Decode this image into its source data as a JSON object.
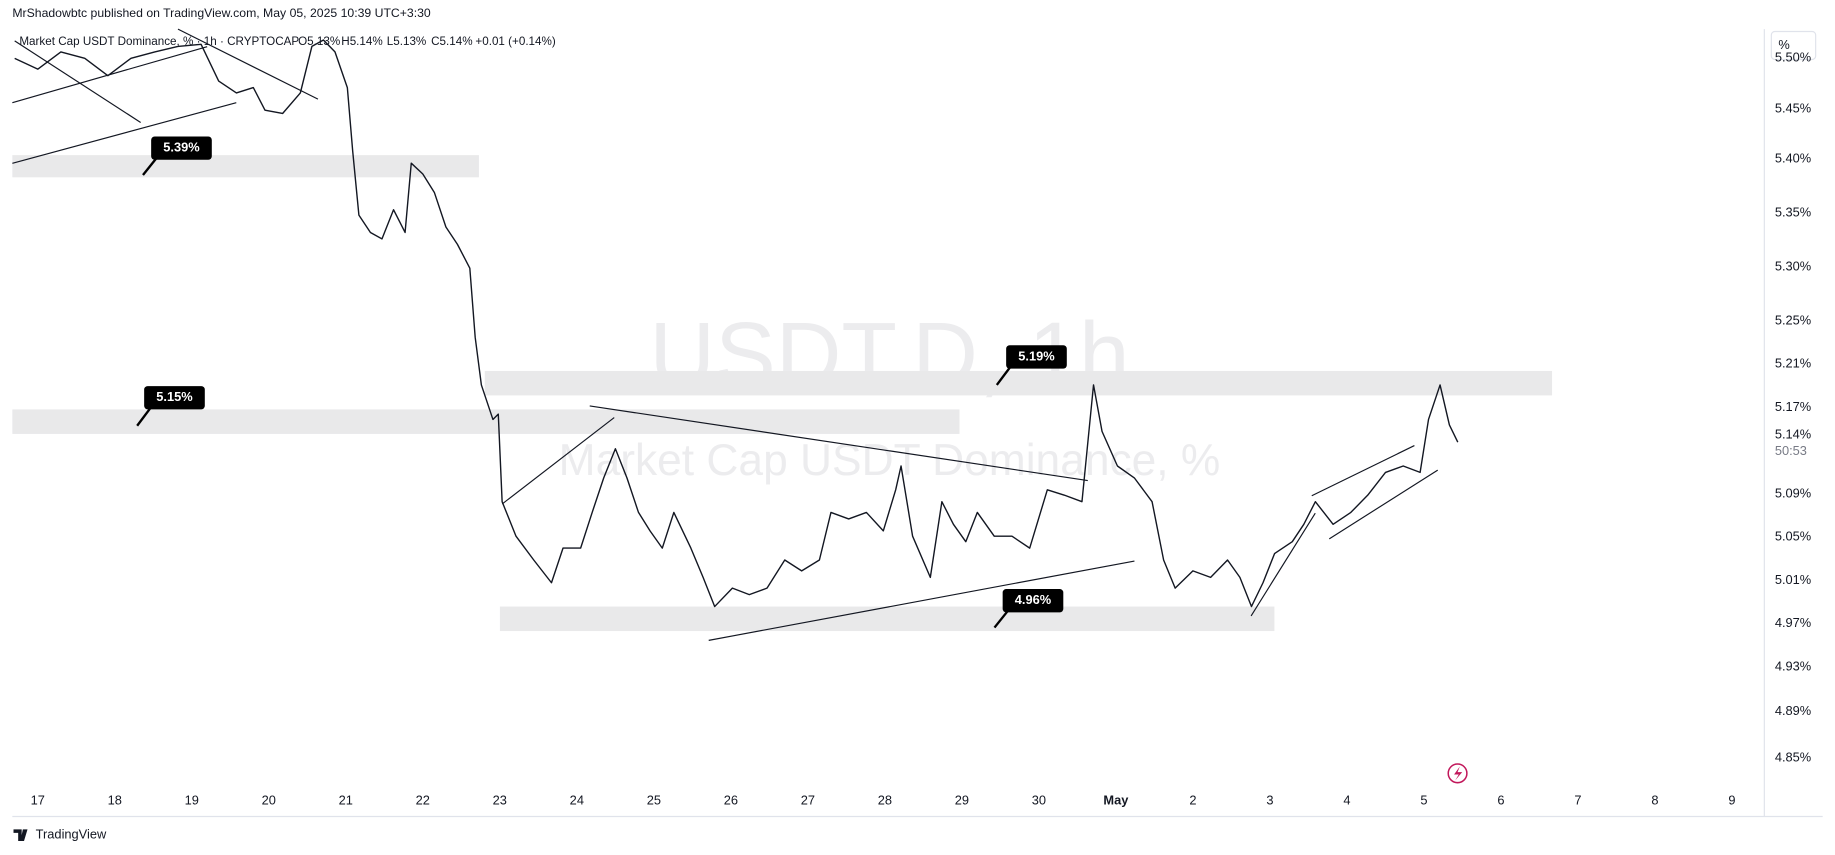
{
  "header": "MrShadowbtc published on TradingView.com, May 05, 2025 10:39 UTC+3:30",
  "footer": "TradingView",
  "chart_data": {
    "type": "line",
    "title": "USDT.D, 1h",
    "subtitle": "Market Cap USDT Dominance, %",
    "symbol_line": "Market Cap USDT Dominance, % · 1h · CRYPTOCAP",
    "ohlc": [
      "O5.13%",
      "H5.14%",
      "L5.13%",
      "C5.14%"
    ],
    "change": "+0.01 (+0.14%)",
    "axis_unit": "%",
    "price_label": "5.14%",
    "countdown": "50:53",
    "annotations": [
      "5.39%",
      "5.15%",
      "5.19%",
      "4.96%"
    ],
    "color": "#131722",
    "x": [
      16.7,
      17.0,
      17.3,
      17.61,
      17.91,
      18.21,
      18.52,
      18.82,
      19.12,
      19.35,
      19.58,
      19.8,
      19.95,
      20.18,
      20.41,
      20.56,
      20.71,
      20.86,
      21.02,
      21.09,
      21.17,
      21.32,
      21.47,
      21.62,
      21.77,
      21.85,
      22.0,
      22.15,
      22.3,
      22.45,
      22.61,
      22.68,
      22.76,
      22.91,
      22.98,
      23.03,
      23.21,
      23.44,
      23.67,
      23.82,
      24.05,
      24.2,
      24.35,
      24.5,
      24.65,
      24.8,
      24.95,
      25.11,
      25.26,
      25.48,
      25.64,
      25.79,
      26.02,
      26.24,
      26.47,
      26.7,
      26.92,
      27.15,
      27.3,
      27.53,
      27.76,
      27.98,
      28.14,
      28.21,
      28.36,
      28.59,
      28.74,
      28.89,
      29.05,
      29.2,
      29.42,
      29.65,
      29.88,
      30.11,
      30.33,
      30.56,
      30.71,
      30.82,
      31.02,
      31.24,
      31.47,
      31.62,
      31.77,
      32.0,
      32.23,
      32.45,
      32.61,
      32.76,
      32.91,
      33.06,
      33.29,
      33.44,
      33.59,
      33.82,
      34.05,
      34.27,
      34.5,
      34.73,
      34.95,
      35.06,
      35.21,
      35.33,
      35.44
    ],
    "values": [
      5.497,
      5.487,
      5.503,
      5.497,
      5.481,
      5.497,
      5.503,
      5.508,
      5.51,
      5.476,
      5.465,
      5.47,
      5.449,
      5.446,
      5.465,
      5.508,
      5.514,
      5.503,
      5.47,
      5.411,
      5.352,
      5.336,
      5.33,
      5.357,
      5.336,
      5.4,
      5.39,
      5.373,
      5.341,
      5.325,
      5.303,
      5.239,
      5.195,
      5.163,
      5.168,
      5.087,
      5.055,
      5.033,
      5.012,
      5.044,
      5.044,
      5.077,
      5.109,
      5.136,
      5.109,
      5.077,
      5.06,
      5.044,
      5.077,
      5.044,
      5.017,
      4.99,
      5.007,
      5.001,
      5.007,
      5.033,
      5.023,
      5.033,
      5.077,
      5.071,
      5.077,
      5.06,
      5.098,
      5.12,
      5.055,
      5.017,
      5.087,
      5.066,
      5.05,
      5.077,
      5.055,
      5.055,
      5.044,
      5.098,
      5.093,
      5.087,
      5.195,
      5.152,
      5.12,
      5.109,
      5.087,
      5.033,
      5.007,
      5.023,
      5.017,
      5.033,
      5.017,
      4.99,
      5.012,
      5.039,
      5.05,
      5.066,
      5.087,
      5.066,
      5.077,
      5.093,
      5.114,
      5.12,
      5.114,
      5.163,
      5.195,
      5.158,
      5.142
    ],
    "xlim": [
      16.67,
      39.42
    ],
    "ylim": [
      4.826,
      5.524
    ],
    "xticks": [
      17,
      18,
      19,
      20,
      21,
      22,
      23,
      24,
      25,
      26,
      27,
      28,
      29,
      30,
      {
        "value": 31,
        "label": "May"
      },
      {
        "value": 32,
        "label": "2"
      },
      {
        "value": 33,
        "label": "3"
      },
      {
        "value": 34,
        "label": "4"
      },
      {
        "value": 35,
        "label": "5"
      },
      {
        "value": 36,
        "label": "6"
      },
      {
        "value": 37,
        "label": "7"
      },
      {
        "value": 38,
        "label": "8"
      },
      {
        "value": 39,
        "label": "9"
      }
    ],
    "yticks": [
      {
        "value": 4.85,
        "label": "4.85%"
      },
      {
        "value": 4.893,
        "label": "4.89%"
      },
      {
        "value": 4.934,
        "label": "4.93%"
      },
      {
        "value": 4.974,
        "label": "4.97%"
      },
      {
        "value": 5.014,
        "label": "5.01%"
      },
      {
        "value": 5.054,
        "label": "5.05%"
      },
      {
        "value": 5.094,
        "label": "5.09%"
      },
      {
        "value": 5.174,
        "label": "5.17%"
      },
      {
        "value": 5.214,
        "label": "5.21%"
      },
      {
        "value": 5.254,
        "label": "5.25%"
      },
      {
        "value": 5.304,
        "label": "5.30%"
      },
      {
        "value": 5.354,
        "label": "5.35%"
      },
      {
        "value": 5.404,
        "label": "5.40%"
      },
      {
        "value": 5.45,
        "label": "5.45%"
      },
      {
        "value": 5.497,
        "label": "5.50%"
      }
    ],
    "grid": false
  }
}
